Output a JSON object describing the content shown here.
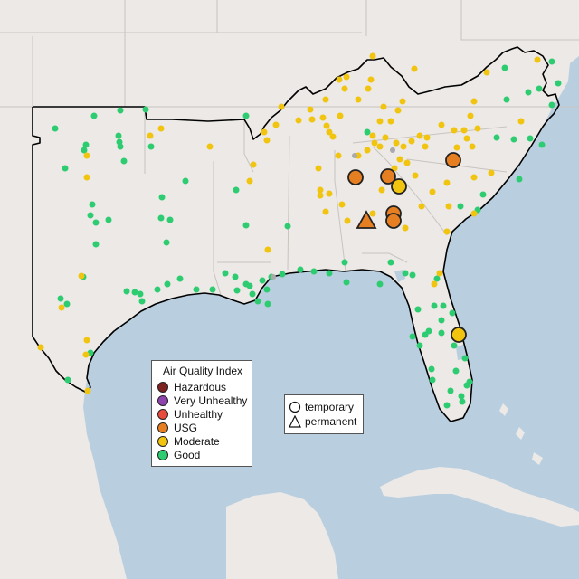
{
  "colors": {
    "water": "#b9cfe0",
    "land": "#ece9e6",
    "stateline": "#c8c4c0",
    "region_border": "#000000"
  },
  "legend_aqi": {
    "title": "Air Quality Index",
    "items": [
      {
        "label": "Hazardous",
        "color": "#7e2121"
      },
      {
        "label": "Very Unhealthy",
        "color": "#8e44ad"
      },
      {
        "label": "Unhealthy",
        "color": "#e74c3c"
      },
      {
        "label": "USG",
        "color": "#e67e22"
      },
      {
        "label": "Moderate",
        "color": "#f1c40f"
      },
      {
        "label": "Good",
        "color": "#2ecc71"
      }
    ]
  },
  "legend_type": {
    "items": [
      {
        "label": "temporary",
        "shape": "circle"
      },
      {
        "label": "permanent",
        "shape": "triangle"
      }
    ]
  }
}
